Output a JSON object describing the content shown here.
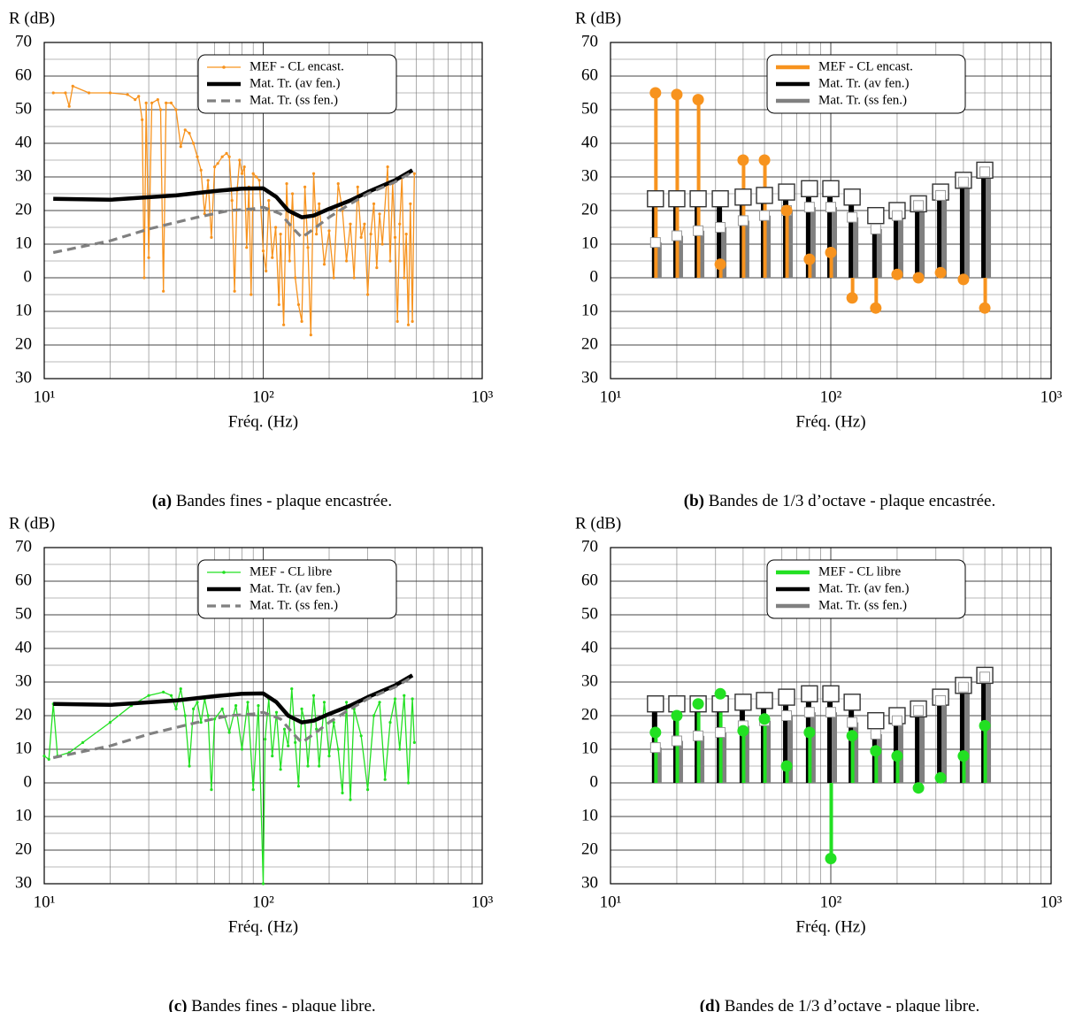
{
  "chart_data": [
    {
      "type": "line",
      "caption_label": "(a)",
      "caption": "Bandes fines - plaque encastrée.",
      "ylabel": "R (dB)",
      "xlabel": "Fréq. (Hz)",
      "xscale": "log",
      "grid": true,
      "legend": "upper right",
      "xlim": [
        10,
        1000
      ],
      "xticks": [
        {
          "value": 10,
          "label": "10¹"
        },
        {
          "value": 100,
          "label": "10²"
        },
        {
          "value": 1000,
          "label": "10³"
        }
      ],
      "ylim": [
        -30,
        70
      ],
      "yticks": [
        {
          "value": -30,
          "label": "30"
        },
        {
          "value": -20,
          "label": "20"
        },
        {
          "value": -10,
          "label": "10"
        },
        0,
        10,
        20,
        30,
        40,
        50,
        60,
        70
      ],
      "series": [
        {
          "name": "MEF - CL encast.",
          "color": "#f7931e",
          "marker": "dot",
          "x": [
            11,
            12.5,
            13,
            13.5,
            16,
            20,
            24,
            26,
            27,
            28,
            28.6,
            29.2,
            30,
            31,
            33,
            34,
            35,
            36,
            38,
            40,
            42,
            44,
            46,
            48,
            50,
            52,
            54,
            56,
            58,
            60,
            62,
            65,
            68,
            70,
            72,
            74,
            76,
            78,
            80,
            82,
            84,
            86,
            88,
            90,
            93,
            96,
            100,
            103,
            106,
            110,
            114,
            118,
            120,
            124,
            128,
            132,
            136,
            140,
            145,
            150,
            155,
            160,
            165,
            170,
            175,
            180,
            190,
            200,
            210,
            220,
            230,
            240,
            250,
            260,
            270,
            280,
            290,
            300,
            310,
            320,
            330,
            340,
            350,
            370,
            380,
            390,
            400,
            410,
            420,
            430,
            440,
            450,
            460,
            470,
            480,
            490
          ],
          "values": [
            55,
            55,
            51,
            57,
            55,
            55,
            54.5,
            53,
            54,
            47,
            0,
            52,
            6,
            52,
            53,
            50,
            -4,
            52,
            52,
            50,
            39,
            44,
            43,
            40,
            36,
            32,
            19,
            29,
            12,
            33,
            34,
            36,
            37,
            36,
            23,
            -4,
            26,
            35,
            31,
            33,
            9,
            27,
            -5,
            31,
            30,
            29,
            8,
            2,
            23,
            6,
            15,
            -8,
            13,
            -14,
            28,
            5,
            25,
            0,
            -8,
            -13,
            27,
            9,
            -17,
            31,
            13,
            22,
            4,
            14,
            0,
            28,
            20,
            5,
            16,
            0,
            27,
            12,
            16,
            -5,
            13,
            22,
            3,
            19,
            10,
            33,
            5,
            28,
            12,
            -13,
            16,
            30,
            0,
            13,
            -14,
            22,
            -13,
            31
          ]
        },
        {
          "name": "Mat. Tr. (av fen.)",
          "color": "#000000",
          "x": [
            11,
            20,
            40,
            60,
            80,
            100,
            115,
            130,
            150,
            170,
            200,
            250,
            300,
            400,
            480
          ],
          "values": [
            23.5,
            23.2,
            24.5,
            25.8,
            26.5,
            26.6,
            24,
            20,
            18,
            18.5,
            20.5,
            23,
            25.5,
            29,
            32
          ]
        },
        {
          "name": "Mat. Tr. (ss fen.)",
          "color": "#808080",
          "dash": true,
          "x": [
            11,
            20,
            30,
            50,
            70,
            90,
            100,
            120,
            140,
            150,
            170,
            200,
            250,
            300,
            400,
            480
          ],
          "values": [
            7.5,
            11,
            14.5,
            18,
            20,
            20.5,
            21,
            19,
            14,
            12,
            14.5,
            18,
            22,
            25,
            28.5,
            31.5
          ]
        }
      ]
    },
    {
      "type": "bar",
      "caption_label": "(b)",
      "caption": "Bandes de 1/3 d’octave - plaque encastrée.",
      "ylabel": "R (dB)",
      "xlabel": "Fréq. (Hz)",
      "xscale": "log",
      "grid": true,
      "legend": "upper right",
      "xlim": [
        10,
        1000
      ],
      "xticks": [
        {
          "value": 10,
          "label": "10¹"
        },
        {
          "value": 100,
          "label": "10²"
        },
        {
          "value": 1000,
          "label": "10³"
        }
      ],
      "ylim": [
        -30,
        70
      ],
      "yticks": [
        {
          "value": -30,
          "label": "30"
        },
        {
          "value": -20,
          "label": "20"
        },
        {
          "value": -10,
          "label": "10"
        },
        0,
        10,
        20,
        30,
        40,
        50,
        60,
        70
      ],
      "x": [
        16,
        20,
        25,
        31.5,
        40,
        50,
        63,
        80,
        100,
        125,
        160,
        200,
        250,
        315,
        400,
        500
      ],
      "series": [
        {
          "name": "MEF - CL encast.",
          "color": "#f7931e",
          "marker": "circle",
          "values": [
            55,
            54.5,
            53,
            4,
            35,
            35,
            20,
            5.5,
            7.5,
            -6,
            -9,
            1,
            0,
            1.5,
            -0.5,
            -9
          ]
        },
        {
          "name": "Mat. Tr. (av fen.)",
          "color": "#000000",
          "marker": "square",
          "values": [
            23.5,
            23.5,
            23.5,
            23.5,
            24,
            24.5,
            25.5,
            26.5,
            26.5,
            24,
            18.5,
            20,
            22,
            25.5,
            29,
            32
          ]
        },
        {
          "name": "Mat. Tr. (ss fen.)",
          "color": "#808080",
          "marker": "small-square",
          "values": [
            10.5,
            12.5,
            14,
            15,
            17,
            18.5,
            20,
            21,
            21,
            18,
            14.5,
            18.5,
            21.5,
            24.5,
            28.5,
            31.5
          ]
        }
      ]
    },
    {
      "type": "line",
      "caption_label": "(c)",
      "caption": "Bandes fines - plaque libre.",
      "ylabel": "R (dB)",
      "xlabel": "Fréq. (Hz)",
      "xscale": "log",
      "grid": true,
      "legend": "upper right",
      "xlim": [
        10,
        1000
      ],
      "xticks": [
        {
          "value": 10,
          "label": "10¹"
        },
        {
          "value": 100,
          "label": "10²"
        },
        {
          "value": 1000,
          "label": "10³"
        }
      ],
      "ylim": [
        -30,
        70
      ],
      "yticks": [
        {
          "value": -30,
          "label": "30"
        },
        {
          "value": -20,
          "label": "20"
        },
        {
          "value": -10,
          "label": "10"
        },
        0,
        10,
        20,
        30,
        40,
        50,
        60,
        70
      ],
      "series": [
        {
          "name": "MEF - CL libre",
          "color": "#22e022",
          "marker": "dot",
          "x": [
            10,
            10.5,
            11,
            11.5,
            13,
            15,
            20,
            25,
            30,
            35,
            38,
            40,
            42,
            44,
            46,
            48,
            50,
            52,
            54,
            56,
            58,
            60,
            65,
            70,
            75,
            80,
            85,
            90,
            95,
            100,
            102,
            106,
            110,
            115,
            120,
            125,
            130,
            135,
            140,
            145,
            150,
            155,
            160,
            170,
            175,
            180,
            190,
            200,
            210,
            220,
            230,
            240,
            250,
            260,
            280,
            300,
            320,
            340,
            360,
            380,
            400,
            420,
            440,
            460,
            480,
            490
          ],
          "values": [
            8,
            7,
            23.5,
            8,
            9,
            12,
            18,
            23,
            26,
            27,
            26,
            22,
            28,
            20,
            5,
            22,
            24,
            18,
            25,
            20,
            -2,
            19,
            22,
            15,
            23,
            10,
            24,
            -2,
            23,
            -30,
            13,
            25,
            8,
            21,
            4,
            16,
            11,
            28,
            12,
            -1,
            22,
            18,
            5,
            26,
            16,
            5,
            24,
            8,
            18,
            10,
            -3,
            24,
            -5,
            22,
            14,
            -2,
            20,
            24,
            1,
            18,
            25,
            10,
            26,
            0,
            25,
            12
          ]
        },
        {
          "name": "Mat. Tr. (av fen.)",
          "color": "#000000",
          "x": [
            11,
            20,
            40,
            60,
            80,
            100,
            115,
            130,
            150,
            170,
            200,
            250,
            300,
            400,
            480
          ],
          "values": [
            23.5,
            23.2,
            24.5,
            25.8,
            26.5,
            26.6,
            24,
            20,
            18,
            18.5,
            20.5,
            23,
            25.5,
            29,
            32
          ]
        },
        {
          "name": "Mat. Tr. (ss fen.)",
          "color": "#808080",
          "dash": true,
          "x": [
            11,
            20,
            30,
            50,
            70,
            90,
            100,
            120,
            140,
            150,
            170,
            200,
            250,
            300,
            400,
            480
          ],
          "values": [
            7.5,
            11,
            14.5,
            18,
            20,
            20.5,
            21,
            19,
            14,
            12,
            14.5,
            18,
            22,
            25,
            28.5,
            31.5
          ]
        }
      ]
    },
    {
      "type": "bar",
      "caption_label": "(d)",
      "caption": "Bandes de 1/3 d’octave - plaque libre.",
      "ylabel": "R (dB)",
      "xlabel": "Fréq. (Hz)",
      "xscale": "log",
      "grid": true,
      "legend": "upper right",
      "xlim": [
        10,
        1000
      ],
      "xticks": [
        {
          "value": 10,
          "label": "10¹"
        },
        {
          "value": 100,
          "label": "10²"
        },
        {
          "value": 1000,
          "label": "10³"
        }
      ],
      "ylim": [
        -30,
        70
      ],
      "yticks": [
        {
          "value": -30,
          "label": "30"
        },
        {
          "value": -20,
          "label": "20"
        },
        {
          "value": -10,
          "label": "10"
        },
        0,
        10,
        20,
        30,
        40,
        50,
        60,
        70
      ],
      "x": [
        16,
        20,
        25,
        31.5,
        40,
        50,
        63,
        80,
        100,
        125,
        160,
        200,
        250,
        315,
        400,
        500
      ],
      "series": [
        {
          "name": "MEF - CL libre",
          "color": "#22e022",
          "marker": "circle",
          "values": [
            15,
            20,
            23.5,
            26.5,
            15.5,
            19,
            5,
            15,
            -22.5,
            14,
            9.5,
            8,
            -1.5,
            1.5,
            8,
            17
          ]
        },
        {
          "name": "Mat. Tr. (av fen.)",
          "color": "#000000",
          "marker": "square",
          "values": [
            23.5,
            23.5,
            23.5,
            23.5,
            24,
            24.5,
            25.5,
            26.5,
            26.5,
            24,
            18.5,
            20,
            22,
            25.5,
            29,
            32
          ]
        },
        {
          "name": "Mat. Tr. (ss fen.)",
          "color": "#808080",
          "marker": "small-square",
          "values": [
            10.5,
            12.5,
            14,
            15,
            17,
            18.5,
            20,
            21,
            21,
            18,
            14.5,
            18.5,
            21.5,
            24.5,
            28.5,
            31.5
          ]
        }
      ]
    }
  ]
}
